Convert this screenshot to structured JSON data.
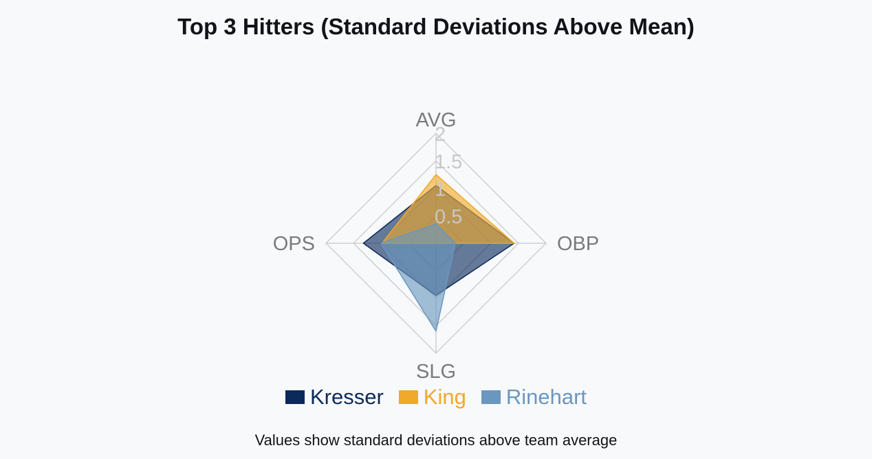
{
  "chart_data": {
    "type": "radar",
    "title": "Top 3 Hitters (Standard Deviations Above Mean)",
    "axes": [
      "AVG",
      "OBP",
      "SLG",
      "OPS"
    ],
    "r_ticks": [
      "0.5",
      "1",
      "1.5",
      "2"
    ],
    "r_range": [
      0,
      2
    ],
    "grid": true,
    "legend_position": "bottom",
    "series": [
      {
        "name": "Kresser",
        "values": [
          1.05,
          1.42,
          0.95,
          1.32
        ],
        "color": "#0b2a5b"
      },
      {
        "name": "King",
        "values": [
          1.25,
          1.42,
          0.0,
          0.98
        ],
        "color": "#f0a928"
      },
      {
        "name": "Rinehart",
        "values": [
          0.35,
          0.35,
          1.6,
          1.0
        ],
        "color": "#6a97bf"
      }
    ]
  },
  "footnote": "Values show standard deviations above team average"
}
